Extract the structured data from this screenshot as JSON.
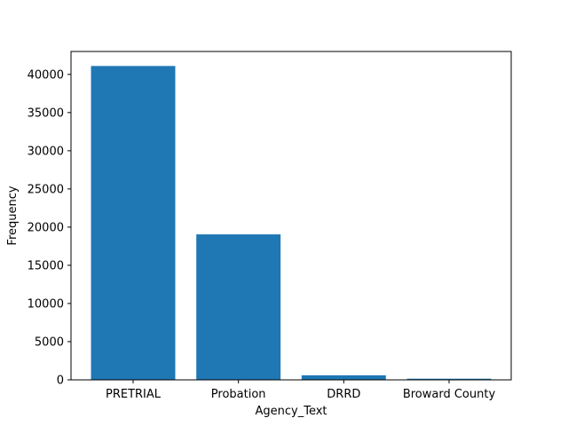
{
  "chart_data": {
    "type": "bar",
    "categories": [
      "PRETRIAL",
      "Probation",
      "DRRD",
      "Broward County"
    ],
    "values": [
      41100,
      19050,
      600,
      150
    ],
    "xlabel": "Agency_Text",
    "ylabel": "Frequency",
    "ylim": [
      0,
      43000
    ],
    "yticks": [
      0,
      5000,
      10000,
      15000,
      20000,
      25000,
      30000,
      35000,
      40000
    ],
    "ytick_labels": [
      "0",
      "5000",
      "10000",
      "15000",
      "20000",
      "25000",
      "30000",
      "35000",
      "40000"
    ],
    "grid": false,
    "bar_color": "#1f77b4"
  }
}
